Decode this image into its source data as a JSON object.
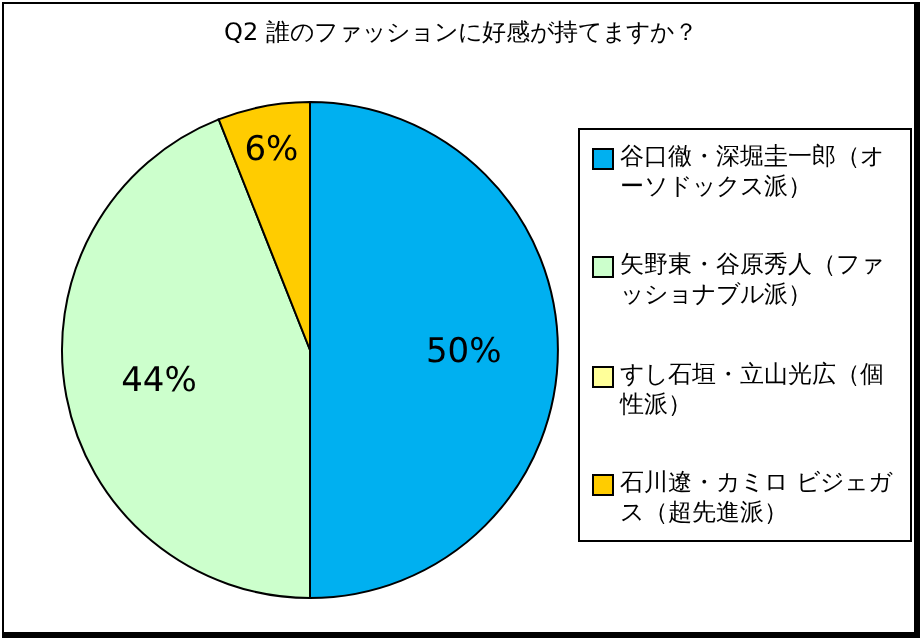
{
  "chart_data": {
    "type": "pie",
    "title": "Q2  誰のファッションに好感が持てますか？",
    "categories": [
      "谷口徹・深堀圭一郎（オーソドックス派）",
      "矢野東・谷原秀人（ファッショナブル派）",
      "すし石垣・立山光広（個性派）",
      "石川遼・カミロ ビジェガス（超先進派）"
    ],
    "values": [
      50,
      44,
      0,
      6
    ],
    "colors": [
      "#00b0f0",
      "#ccffcc",
      "#ffff99",
      "#ffcc00"
    ],
    "value_labels": [
      "50%",
      "44%",
      null,
      "6%"
    ],
    "legend": "right"
  }
}
